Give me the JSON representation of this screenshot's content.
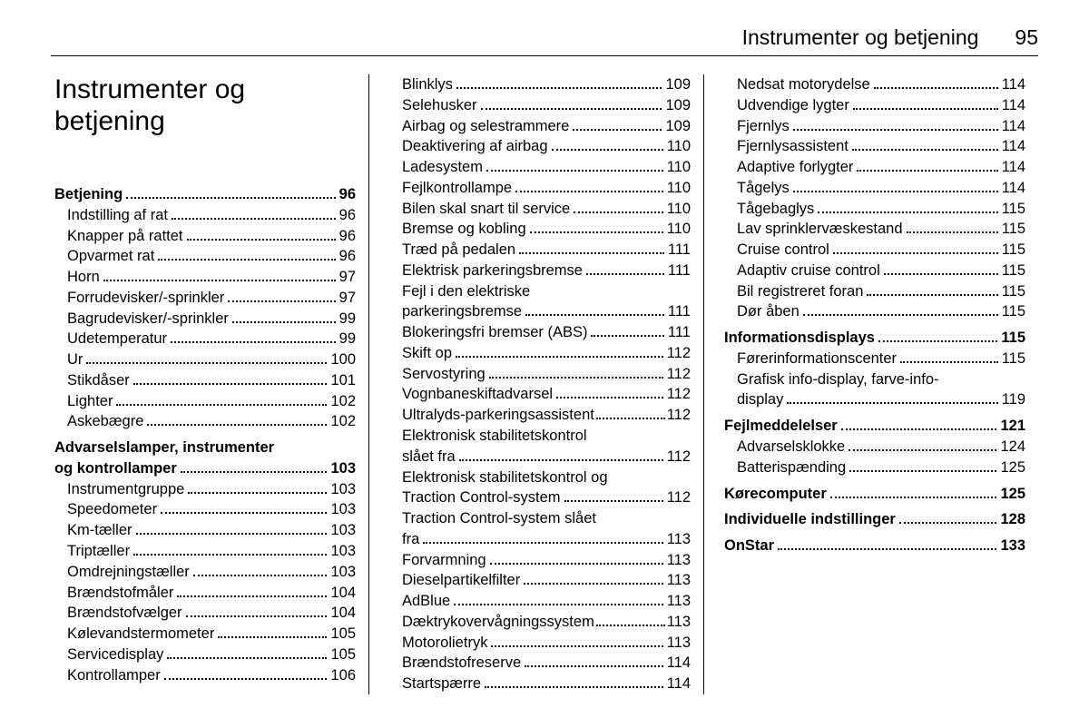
{
  "header": {
    "title": "Instrumenter og betjening",
    "page": "95"
  },
  "chapter_heading": "Instrumenter og betjening",
  "columns": [
    [
      {
        "t": "Betjening",
        "p": "96",
        "bold": true,
        "cls": "spacer-top"
      },
      {
        "t": "Indstilling af rat",
        "p": "96",
        "cls": "indent"
      },
      {
        "t": "Knapper på rattet",
        "p": "96",
        "cls": "indent"
      },
      {
        "t": "Opvarmet rat",
        "p": "96",
        "cls": "indent"
      },
      {
        "t": "Horn",
        "p": "97",
        "cls": "indent"
      },
      {
        "t": "Forrudevisker/-sprinkler",
        "p": "97",
        "cls": "indent"
      },
      {
        "t": "Bagrudevisker/-sprinkler",
        "p": "99",
        "cls": "indent"
      },
      {
        "t": "Udetemperatur",
        "p": "99",
        "cls": "indent"
      },
      {
        "t": "Ur",
        "p": "100",
        "cls": "indent"
      },
      {
        "t": "Stikdåser",
        "p": "101",
        "cls": "indent"
      },
      {
        "t": "Lighter",
        "p": "102",
        "cls": "indent"
      },
      {
        "t": "Askebægre",
        "p": "102",
        "cls": "indent"
      },
      {
        "t": "Advarselslamper, instrumenter",
        "bold": true,
        "nowrap": true,
        "cls": "spacer-top"
      },
      {
        "t": "og kontrollamper",
        "p": "103",
        "bold": true
      },
      {
        "t": "Instrumentgruppe",
        "p": "103",
        "cls": "indent"
      },
      {
        "t": "Speedometer",
        "p": "103",
        "cls": "indent"
      },
      {
        "t": "Km-tæller",
        "p": "103",
        "cls": "indent"
      },
      {
        "t": "Triptæller",
        "p": "103",
        "cls": "indent"
      },
      {
        "t": "Omdrejningstæller",
        "p": "103",
        "cls": "indent"
      },
      {
        "t": "Brændstofmåler",
        "p": "104",
        "cls": "indent"
      },
      {
        "t": "Brændstofvælger",
        "p": "104",
        "cls": "indent"
      },
      {
        "t": "Kølevandstermometer",
        "p": "105",
        "cls": "indent"
      },
      {
        "t": "Servicedisplay",
        "p": "105",
        "cls": "indent"
      },
      {
        "t": "Kontrollamper",
        "p": "106",
        "cls": "indent"
      }
    ],
    [
      {
        "t": "Blinklys",
        "p": "109",
        "cls": "indent"
      },
      {
        "t": "Selehusker",
        "p": "109",
        "cls": "indent"
      },
      {
        "t": "Airbag og selestrammere",
        "p": "109",
        "cls": "indent"
      },
      {
        "t": "Deaktivering af airbag",
        "p": "110",
        "cls": "indent"
      },
      {
        "t": "Ladesystem",
        "p": "110",
        "cls": "indent"
      },
      {
        "t": "Fejlkontrollampe",
        "p": "110",
        "cls": "indent"
      },
      {
        "t": "Bilen skal snart til service",
        "p": "110",
        "cls": "indent"
      },
      {
        "t": "Bremse og kobling",
        "p": "110",
        "cls": "indent"
      },
      {
        "t": "Træd på pedalen",
        "p": "111",
        "cls": "indent"
      },
      {
        "t": "Elektrisk parkeringsbremse",
        "p": "111",
        "cls": "indent"
      },
      {
        "t": "Fejl i den elektriske",
        "cls": "indent",
        "nowrap": true
      },
      {
        "t": "parkeringsbremse",
        "p": "111",
        "cls": "indent toc-cont"
      },
      {
        "t": "Blokeringsfri bremser (ABS)",
        "p": "111",
        "cls": "indent"
      },
      {
        "t": "Skift op",
        "p": "112",
        "cls": "indent"
      },
      {
        "t": "Servostyring",
        "p": "112",
        "cls": "indent"
      },
      {
        "t": "Vognbaneskiftadvarsel",
        "p": "112",
        "cls": "indent"
      },
      {
        "t": "Ultralyds-parkeringsassistent",
        "p": "112",
        "cls": "indent",
        "tight": true
      },
      {
        "t": "Elektronisk stabilitetskontrol",
        "cls": "indent",
        "nowrap": true
      },
      {
        "t": "slået fra",
        "p": "112",
        "cls": "indent toc-cont"
      },
      {
        "t": "Elektronisk stabilitetskontrol og",
        "cls": "indent",
        "nowrap": true
      },
      {
        "t": "Traction Control-system",
        "p": "112",
        "cls": "indent toc-cont"
      },
      {
        "t": "Traction Control-system slået",
        "cls": "indent",
        "nowrap": true
      },
      {
        "t": "fra",
        "p": "113",
        "cls": "indent toc-cont"
      },
      {
        "t": "Forvarmning",
        "p": "113",
        "cls": "indent"
      },
      {
        "t": "Dieselpartikelfilter",
        "p": "113",
        "cls": "indent"
      },
      {
        "t": "AdBlue",
        "p": "113",
        "cls": "indent"
      },
      {
        "t": "Dæktrykovervågningssystem",
        "p": "113",
        "cls": "indent",
        "tight": true
      },
      {
        "t": "Motorolietryk",
        "p": "113",
        "cls": "indent"
      },
      {
        "t": "Brændstofreserve",
        "p": "114",
        "cls": "indent"
      },
      {
        "t": "Startspærre",
        "p": "114",
        "cls": "indent"
      }
    ],
    [
      {
        "t": "Nedsat motorydelse",
        "p": "114",
        "cls": "indent"
      },
      {
        "t": "Udvendige lygter",
        "p": "114",
        "cls": "indent"
      },
      {
        "t": "Fjernlys",
        "p": "114",
        "cls": "indent"
      },
      {
        "t": "Fjernlysassistent",
        "p": "114",
        "cls": "indent"
      },
      {
        "t": "Adaptive forlygter",
        "p": "114",
        "cls": "indent"
      },
      {
        "t": "Tågelys",
        "p": "114",
        "cls": "indent"
      },
      {
        "t": "Tågebaglys",
        "p": "115",
        "cls": "indent"
      },
      {
        "t": "Lav sprinklervæskestand",
        "p": "115",
        "cls": "indent"
      },
      {
        "t": "Cruise control",
        "p": "115",
        "cls": "indent"
      },
      {
        "t": "Adaptiv cruise control",
        "p": "115",
        "cls": "indent"
      },
      {
        "t": "Bil registreret foran",
        "p": "115",
        "cls": "indent"
      },
      {
        "t": "Dør åben",
        "p": "115",
        "cls": "indent"
      },
      {
        "t": "Informationsdisplays",
        "p": "115",
        "bold": true,
        "cls": "spacer-top"
      },
      {
        "t": "Førerinformationscenter",
        "p": "115",
        "cls": "indent"
      },
      {
        "t": "Grafisk info-display, farve-info-",
        "cls": "indent",
        "nowrap": true
      },
      {
        "t": "display",
        "p": "119",
        "cls": "indent toc-cont"
      },
      {
        "t": "Fejlmeddelelser",
        "p": "121",
        "bold": true,
        "cls": "spacer-top"
      },
      {
        "t": "Advarselsklokke",
        "p": "124",
        "cls": "indent"
      },
      {
        "t": "Batterispænding",
        "p": "125",
        "cls": "indent"
      },
      {
        "t": "Kørecomputer",
        "p": "125",
        "bold": true,
        "cls": "spacer-top"
      },
      {
        "t": "Individuelle indstillinger",
        "p": "128",
        "bold": true,
        "cls": "spacer-top"
      },
      {
        "t": "OnStar",
        "p": "133",
        "bold": true,
        "cls": "spacer-top"
      }
    ]
  ]
}
